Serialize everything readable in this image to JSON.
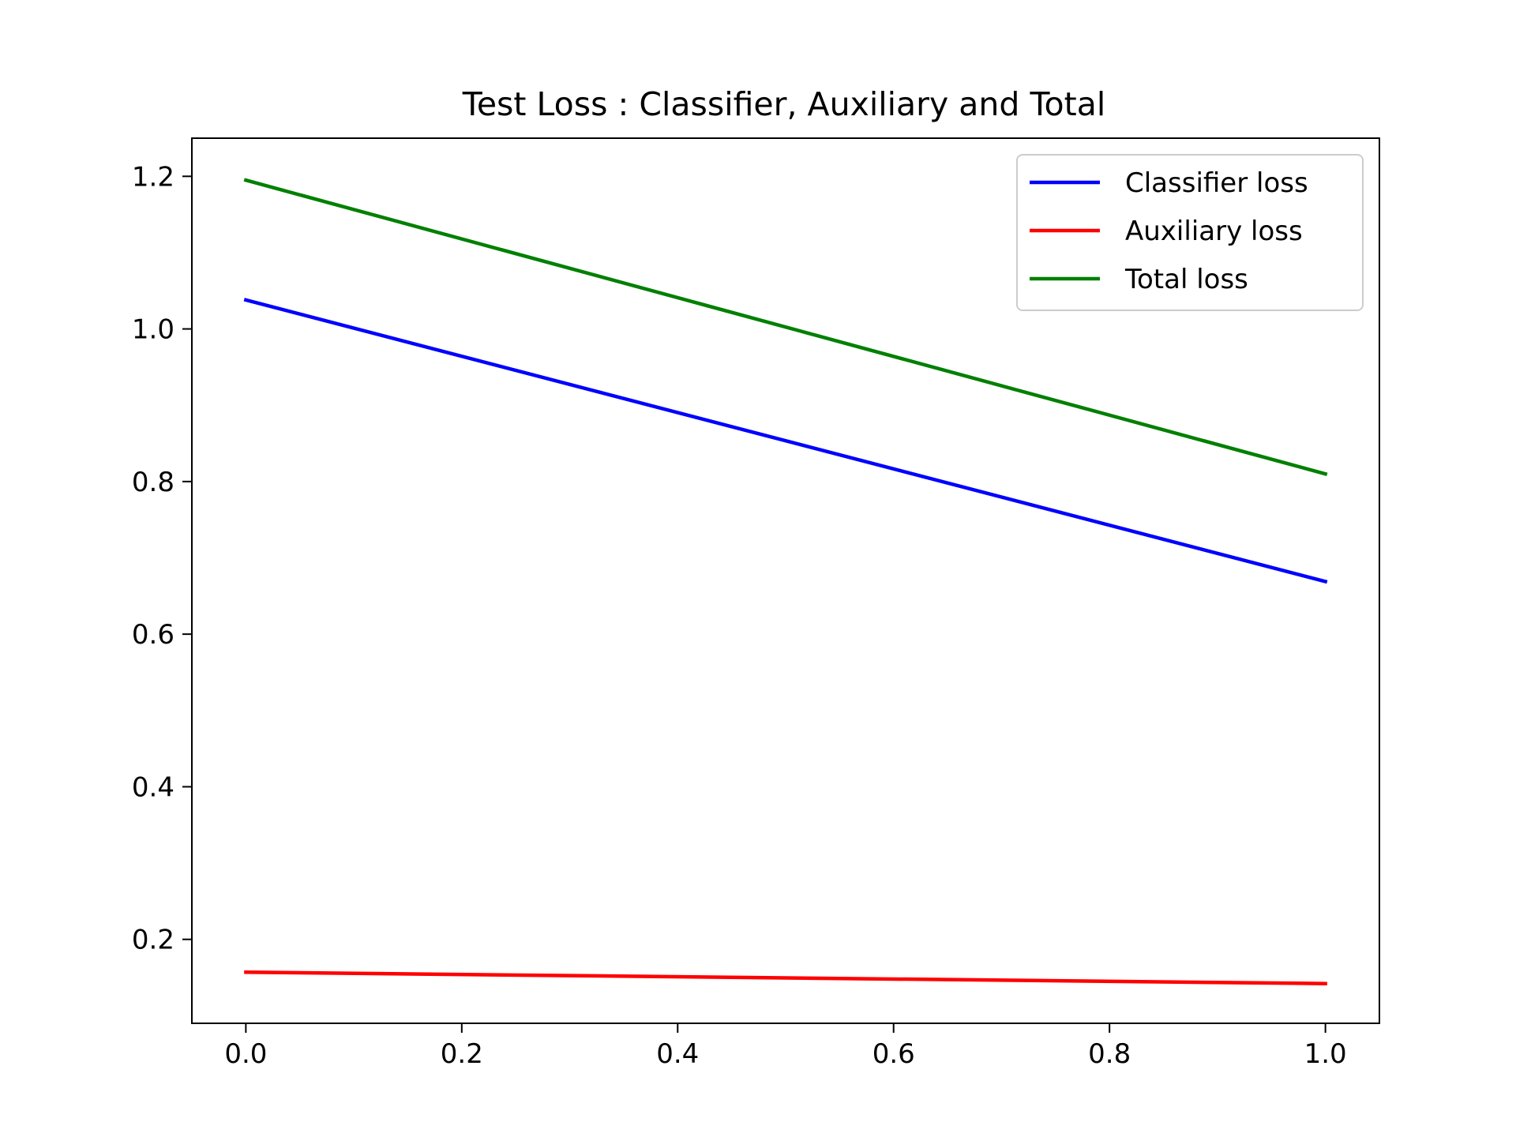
{
  "chart_data": {
    "type": "line",
    "title": "Test Loss : Classifier, Auxiliary and Total",
    "xlabel": "",
    "ylabel": "",
    "xlim": [
      -0.05,
      1.05
    ],
    "ylim": [
      0.09,
      1.25
    ],
    "x_ticks": [
      "0.0",
      "0.2",
      "0.4",
      "0.6",
      "0.8",
      "1.0"
    ],
    "x_tick_values": [
      0.0,
      0.2,
      0.4,
      0.6,
      0.8,
      1.0
    ],
    "y_ticks": [
      "0.2",
      "0.4",
      "0.6",
      "0.8",
      "1.0",
      "1.2"
    ],
    "y_tick_values": [
      0.2,
      0.4,
      0.6,
      0.8,
      1.0,
      1.2
    ],
    "grid": false,
    "legend_position": "top-right",
    "x": [
      0.0,
      1.0
    ],
    "series": [
      {
        "name": "Classifier loss",
        "color": "#0000ff",
        "values": [
          1.038,
          0.669
        ]
      },
      {
        "name": "Auxiliary loss",
        "color": "#ff0000",
        "values": [
          0.157,
          0.142
        ]
      },
      {
        "name": "Total loss",
        "color": "#008000",
        "values": [
          1.195,
          0.81
        ]
      }
    ]
  }
}
